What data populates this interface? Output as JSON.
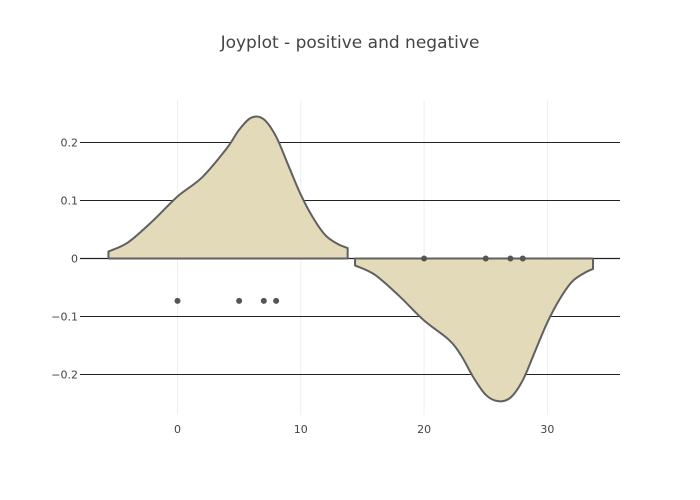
{
  "chart_data": {
    "type": "area",
    "title": "Joyplot - positive and negative",
    "xlabel": "",
    "ylabel": "",
    "xlim": [
      -8,
      36
    ],
    "ylim": [
      -0.3,
      0.28
    ],
    "x_ticks": [
      0,
      10,
      20,
      30
    ],
    "x_tick_labels": [
      "0",
      "10",
      "20",
      "30"
    ],
    "y_ticks": [
      0.2,
      0.1,
      0,
      -0.1,
      -0.2
    ],
    "y_tick_labels": [
      "0.2",
      "0.1",
      "0",
      "−0.1",
      "−0.2"
    ],
    "grid": true,
    "legend": "none",
    "colors": {
      "fill": "#e3dab9",
      "line": "#606060",
      "points": "#555555",
      "grid_y": "#222222",
      "grid_x": "#eeeeee",
      "text": "#444444"
    },
    "series": [
      {
        "kind": "density",
        "x": [
          -5.6,
          -4,
          -2,
          0,
          2,
          4,
          5,
          6,
          7,
          8,
          9,
          10,
          11,
          12,
          13,
          13.8
        ],
        "y": [
          0.012,
          0.028,
          0.065,
          0.107,
          0.14,
          0.19,
          0.222,
          0.243,
          0.24,
          0.21,
          0.16,
          0.11,
          0.07,
          0.04,
          0.025,
          0.018
        ]
      },
      {
        "kind": "points",
        "x": [
          0,
          5,
          7,
          8
        ],
        "y": [
          -0.073,
          -0.073,
          -0.073,
          -0.073
        ]
      },
      {
        "kind": "density",
        "x": [
          14.4,
          16,
          18,
          20,
          22,
          23,
          24,
          25,
          26,
          27,
          28,
          29,
          30,
          31,
          32,
          33,
          33.7
        ],
        "y": [
          -0.012,
          -0.028,
          -0.065,
          -0.107,
          -0.14,
          -0.167,
          -0.205,
          -0.235,
          -0.246,
          -0.24,
          -0.21,
          -0.16,
          -0.11,
          -0.07,
          -0.04,
          -0.025,
          -0.018
        ]
      },
      {
        "kind": "points",
        "x": [
          20,
          25,
          27,
          28
        ],
        "y": [
          0,
          0,
          0,
          0
        ]
      }
    ]
  }
}
